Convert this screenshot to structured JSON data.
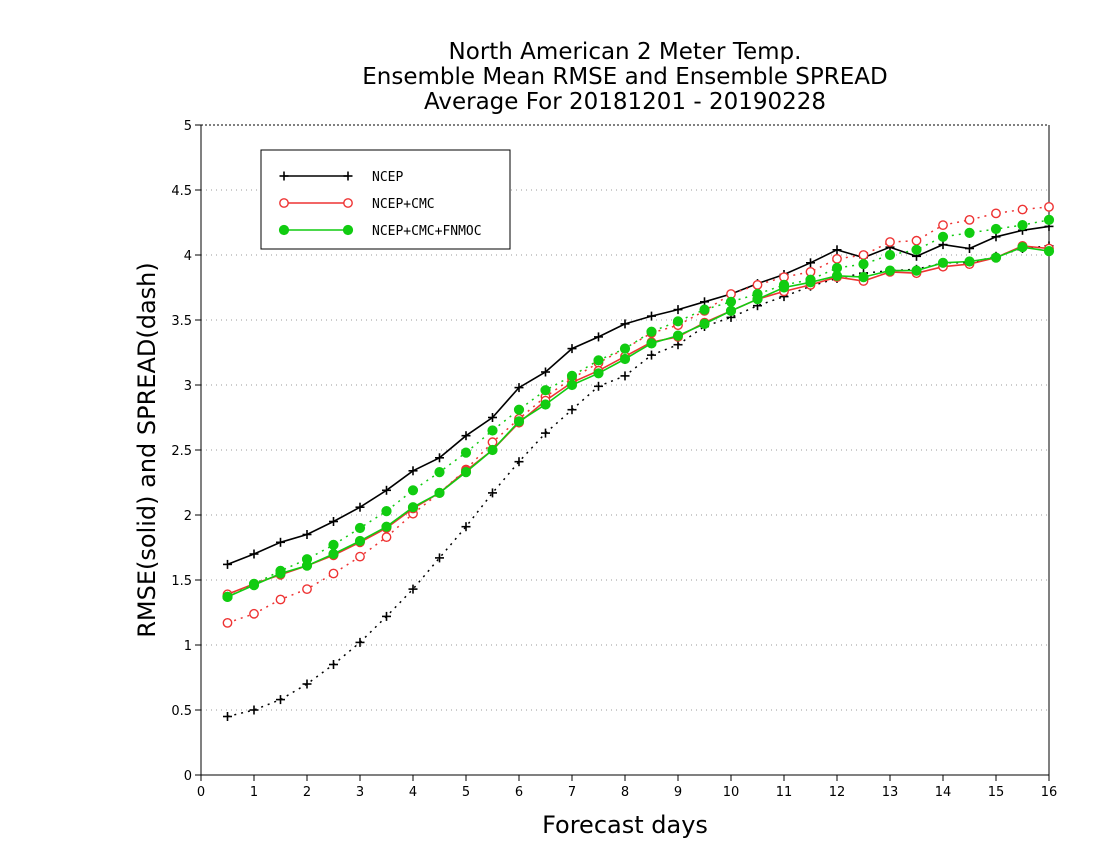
{
  "chart_data": {
    "type": "line",
    "title": [
      "North American 2 Meter Temp.",
      "Ensemble Mean RMSE and Ensemble SPREAD",
      "Average For 20181201 - 20190228"
    ],
    "xlabel": "Forecast days",
    "ylabel": "RMSE(solid) and SPREAD(dash)",
    "xlim": [
      0,
      16
    ],
    "ylim": [
      0,
      5
    ],
    "xticks": [
      "0",
      "1",
      "2",
      "3",
      "4",
      "5",
      "6",
      "7",
      "8",
      "9",
      "10",
      "11",
      "12",
      "13",
      "14",
      "15",
      "16"
    ],
    "yticks": [
      "0",
      "0.5",
      "1",
      "1.5",
      "2",
      "2.5",
      "3",
      "3.5",
      "4",
      "4.5",
      "5"
    ],
    "grid": "horizontal dotted",
    "legend_position": "top-left",
    "x": [
      0.5,
      1,
      1.5,
      2,
      2.5,
      3,
      3.5,
      4,
      4.5,
      5,
      5.5,
      6,
      6.5,
      7,
      7.5,
      8,
      8.5,
      9,
      9.5,
      10,
      10.5,
      11,
      11.5,
      12,
      12.5,
      13,
      13.5,
      14,
      14.5,
      15,
      15.5,
      16
    ],
    "series": [
      {
        "name": "NCEP",
        "color": "#000000",
        "marker": "plus",
        "rmse": [
          1.62,
          1.7,
          1.79,
          1.85,
          1.95,
          2.06,
          2.19,
          2.34,
          2.44,
          2.61,
          2.75,
          2.98,
          3.1,
          3.28,
          3.37,
          3.47,
          3.53,
          3.58,
          3.64,
          3.7,
          3.78,
          3.85,
          3.94,
          4.04,
          3.98,
          4.06,
          3.99,
          4.08,
          4.05,
          4.14,
          4.19,
          4.22
        ],
        "spread": [
          0.45,
          0.5,
          0.58,
          0.7,
          0.85,
          1.02,
          1.22,
          1.43,
          1.67,
          1.91,
          2.17,
          2.41,
          2.63,
          2.81,
          2.99,
          3.07,
          3.23,
          3.31,
          3.45,
          3.52,
          3.61,
          3.68,
          3.76,
          3.82,
          3.86,
          3.88,
          3.89,
          3.94,
          3.94,
          3.99,
          4.05,
          4.07
        ]
      },
      {
        "name": "NCEP+CMC",
        "color": "#ee3333",
        "marker": "circle-open",
        "rmse": [
          1.39,
          1.47,
          1.54,
          1.61,
          1.69,
          1.79,
          1.9,
          2.05,
          2.17,
          2.34,
          2.5,
          2.71,
          2.88,
          3.02,
          3.11,
          3.22,
          3.33,
          3.37,
          3.48,
          3.57,
          3.66,
          3.72,
          3.77,
          3.83,
          3.8,
          3.87,
          3.86,
          3.91,
          3.93,
          3.98,
          4.07,
          4.05
        ],
        "spread": [
          1.17,
          1.24,
          1.35,
          1.43,
          1.55,
          1.68,
          1.83,
          2.01,
          2.17,
          2.35,
          2.56,
          2.74,
          2.91,
          3.05,
          3.17,
          3.28,
          3.4,
          3.46,
          3.57,
          3.7,
          3.77,
          3.83,
          3.87,
          3.97,
          4.0,
          4.1,
          4.11,
          4.23,
          4.27,
          4.32,
          4.35,
          4.37
        ]
      },
      {
        "name": "NCEP+CMC+FNMOC",
        "color": "#11cc11",
        "marker": "circle-filled",
        "rmse": [
          1.37,
          1.46,
          1.55,
          1.61,
          1.7,
          1.8,
          1.91,
          2.06,
          2.17,
          2.33,
          2.5,
          2.72,
          2.85,
          3.0,
          3.09,
          3.2,
          3.32,
          3.38,
          3.47,
          3.57,
          3.66,
          3.75,
          3.79,
          3.84,
          3.83,
          3.88,
          3.88,
          3.94,
          3.95,
          3.98,
          4.06,
          4.03
        ],
        "spread": [
          1.37,
          1.47,
          1.57,
          1.66,
          1.77,
          1.9,
          2.03,
          2.19,
          2.33,
          2.48,
          2.65,
          2.81,
          2.96,
          3.07,
          3.19,
          3.28,
          3.41,
          3.49,
          3.58,
          3.64,
          3.7,
          3.77,
          3.81,
          3.9,
          3.93,
          4.0,
          4.04,
          4.14,
          4.17,
          4.2,
          4.23,
          4.27
        ]
      }
    ]
  }
}
